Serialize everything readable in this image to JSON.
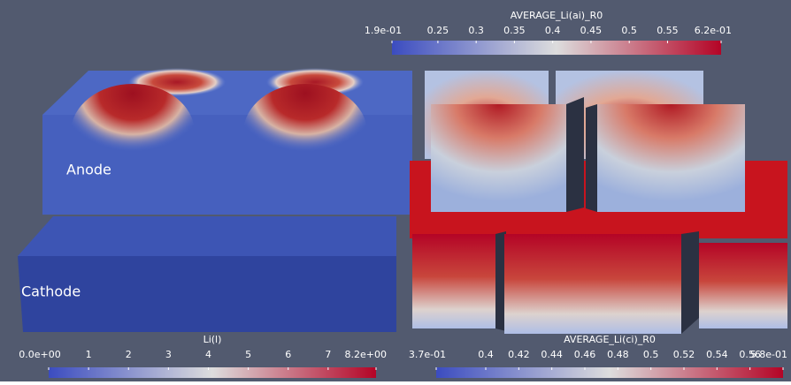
{
  "labels": {
    "anode": "Anode",
    "cathode": "Cathode"
  },
  "colorbars": [
    {
      "title": "AVERAGE_Li(ai)_R0",
      "range": [
        0.19,
        0.62
      ],
      "ticks": [
        {
          "value": 0.19,
          "label": "1.9e-01"
        },
        0.25,
        0.3,
        0.35,
        0.4,
        0.45,
        0.5,
        0.55,
        {
          "value": 0.62,
          "label": "6.2e-01"
        }
      ]
    },
    {
      "title": "Li(l)",
      "range": [
        0,
        8.2
      ],
      "ticks": [
        {
          "value": 0,
          "label": "0.0e+00"
        },
        1,
        2,
        3,
        4,
        5,
        6,
        7,
        {
          "value": 8.2,
          "label": "8.2e+00"
        }
      ]
    },
    {
      "title": "AVERAGE_Li(ci)_R0",
      "range": [
        0.37,
        0.58
      ],
      "ticks": [
        {
          "value": 0.37,
          "label": "3.7e-01"
        },
        0.4,
        0.42,
        0.44,
        0.46,
        0.48,
        0.5,
        0.52,
        0.54,
        0.56,
        {
          "value": 0.58,
          "label": "5.8e-01"
        }
      ]
    }
  ]
}
